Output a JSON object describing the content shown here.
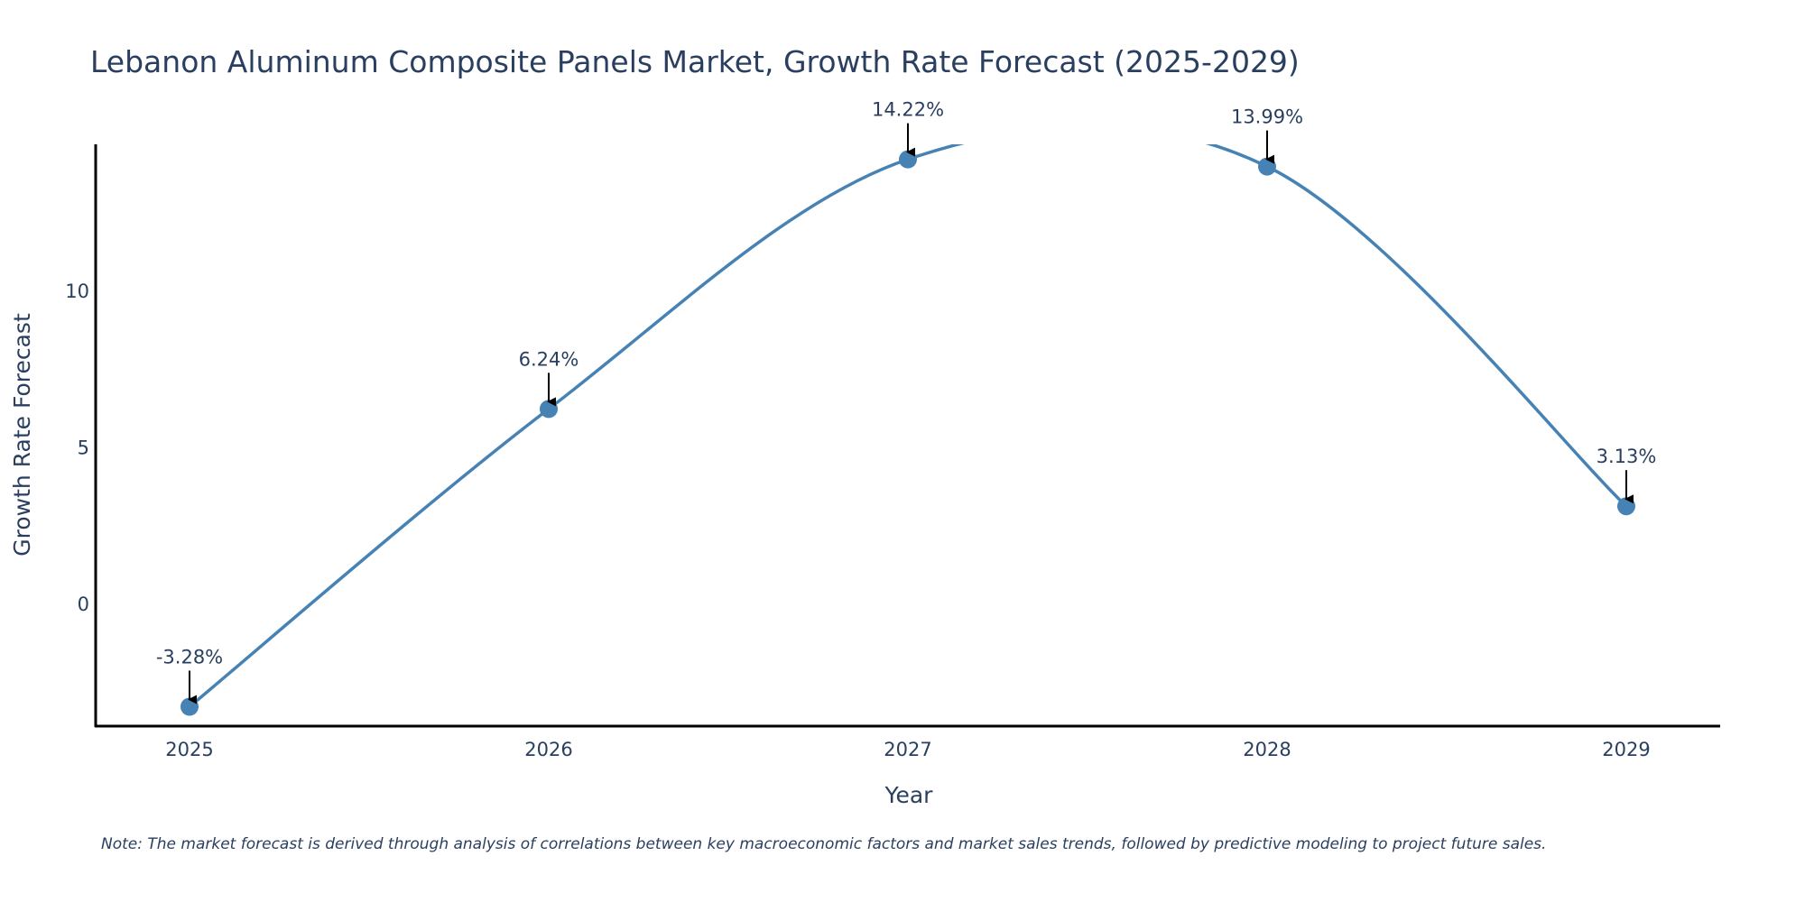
{
  "chart_data": {
    "type": "line",
    "title": "Lebanon Aluminum Composite Panels Market, Growth Rate Forecast (2025-2029)",
    "xlabel": "Year",
    "ylabel": "Growth Rate Forecast",
    "categories": [
      "2025",
      "2026",
      "2027",
      "2028",
      "2029"
    ],
    "values": [
      -3.28,
      6.24,
      14.22,
      13.99,
      3.13
    ],
    "data_labels": [
      "-3.28%",
      "6.24%",
      "14.22%",
      "13.99%",
      "3.13%"
    ],
    "yticks": [
      0,
      5,
      10
    ],
    "ytick_labels": [
      "0",
      "5",
      "10"
    ],
    "ylim": [
      -3.9,
      14.7
    ],
    "line_color": "#4682b4",
    "marker_color": "#4682b4",
    "arrow_color": "#000000",
    "axis_color": "#000000",
    "text_color": "#2a3f5f",
    "grid": false,
    "line_shape": "spline",
    "note": "Note: The market forecast is derived through analysis of correlations between key macroeconomic factors and market sales trends, followed by predictive modeling to project future sales."
  }
}
